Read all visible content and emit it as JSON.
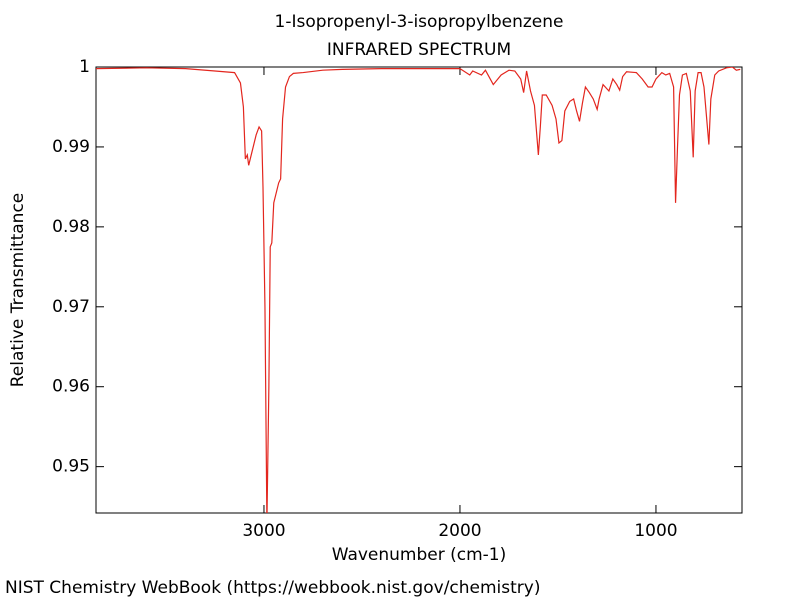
{
  "chart_data": {
    "type": "line",
    "title": "1-Isopropenyl-3-isopropylbenzene",
    "subtitle": "INFRARED SPECTRUM",
    "x_label": "Wavenumber (cm-1)",
    "y_label": "Relative Transmittance",
    "footer": "NIST Chemistry WebBook (https://webbook.nist.gov/chemistry)",
    "color": "#e3261e",
    "xlim": [
      3857,
      561
    ],
    "ylim": [
      0.9442,
      1.0
    ],
    "xticks": [
      3000,
      2000,
      1000
    ],
    "yticks": [
      0.95,
      0.96,
      0.97,
      0.98,
      0.99,
      1
    ],
    "x": [
      3857,
      3600,
      3400,
      3250,
      3150,
      3120,
      3105,
      3095,
      3085,
      3078,
      3065,
      3040,
      3025,
      3012,
      3005,
      2995,
      2985,
      2975,
      2968,
      2960,
      2950,
      2935,
      2925,
      2915,
      2905,
      2890,
      2870,
      2850,
      2800,
      2700,
      2600,
      2400,
      2200,
      2000,
      1950,
      1935,
      1890,
      1870,
      1830,
      1790,
      1750,
      1720,
      1690,
      1675,
      1660,
      1640,
      1620,
      1600,
      1590,
      1580,
      1560,
      1530,
      1510,
      1495,
      1480,
      1465,
      1440,
      1420,
      1405,
      1390,
      1375,
      1360,
      1340,
      1320,
      1300,
      1290,
      1270,
      1240,
      1220,
      1200,
      1185,
      1170,
      1150,
      1100,
      1070,
      1040,
      1020,
      1000,
      970,
      950,
      930,
      910,
      900,
      890,
      880,
      865,
      845,
      825,
      810,
      800,
      785,
      770,
      755,
      730,
      720,
      700,
      680,
      640,
      610,
      590,
      570
    ],
    "values": [
      0.9998,
      0.9999,
      0.9998,
      0.9995,
      0.9993,
      0.998,
      0.995,
      0.9885,
      0.989,
      0.9877,
      0.989,
      0.9915,
      0.9925,
      0.992,
      0.985,
      0.97,
      0.943,
      0.96,
      0.9775,
      0.978,
      0.983,
      0.9845,
      0.9855,
      0.986,
      0.9935,
      0.9975,
      0.9988,
      0.9992,
      0.9993,
      0.9996,
      0.9997,
      0.9998,
      0.9998,
      0.9998,
      0.999,
      0.9995,
      0.999,
      0.9996,
      0.9978,
      0.999,
      0.9996,
      0.9995,
      0.9985,
      0.9968,
      0.9995,
      0.997,
      0.9952,
      0.989,
      0.9925,
      0.9965,
      0.9965,
      0.9952,
      0.9935,
      0.9905,
      0.9908,
      0.9945,
      0.9957,
      0.996,
      0.9945,
      0.9932,
      0.9955,
      0.9975,
      0.9968,
      0.996,
      0.9947,
      0.996,
      0.9978,
      0.997,
      0.9985,
      0.9978,
      0.9971,
      0.9988,
      0.9994,
      0.9993,
      0.9985,
      0.9975,
      0.9975,
      0.9985,
      0.9993,
      0.999,
      0.9992,
      0.9975,
      0.983,
      0.99,
      0.9965,
      0.999,
      0.9992,
      0.997,
      0.9887,
      0.997,
      0.9993,
      0.9993,
      0.9975,
      0.9903,
      0.996,
      0.999,
      0.9995,
      0.9999,
      1.0,
      0.9996,
      0.9997
    ]
  }
}
